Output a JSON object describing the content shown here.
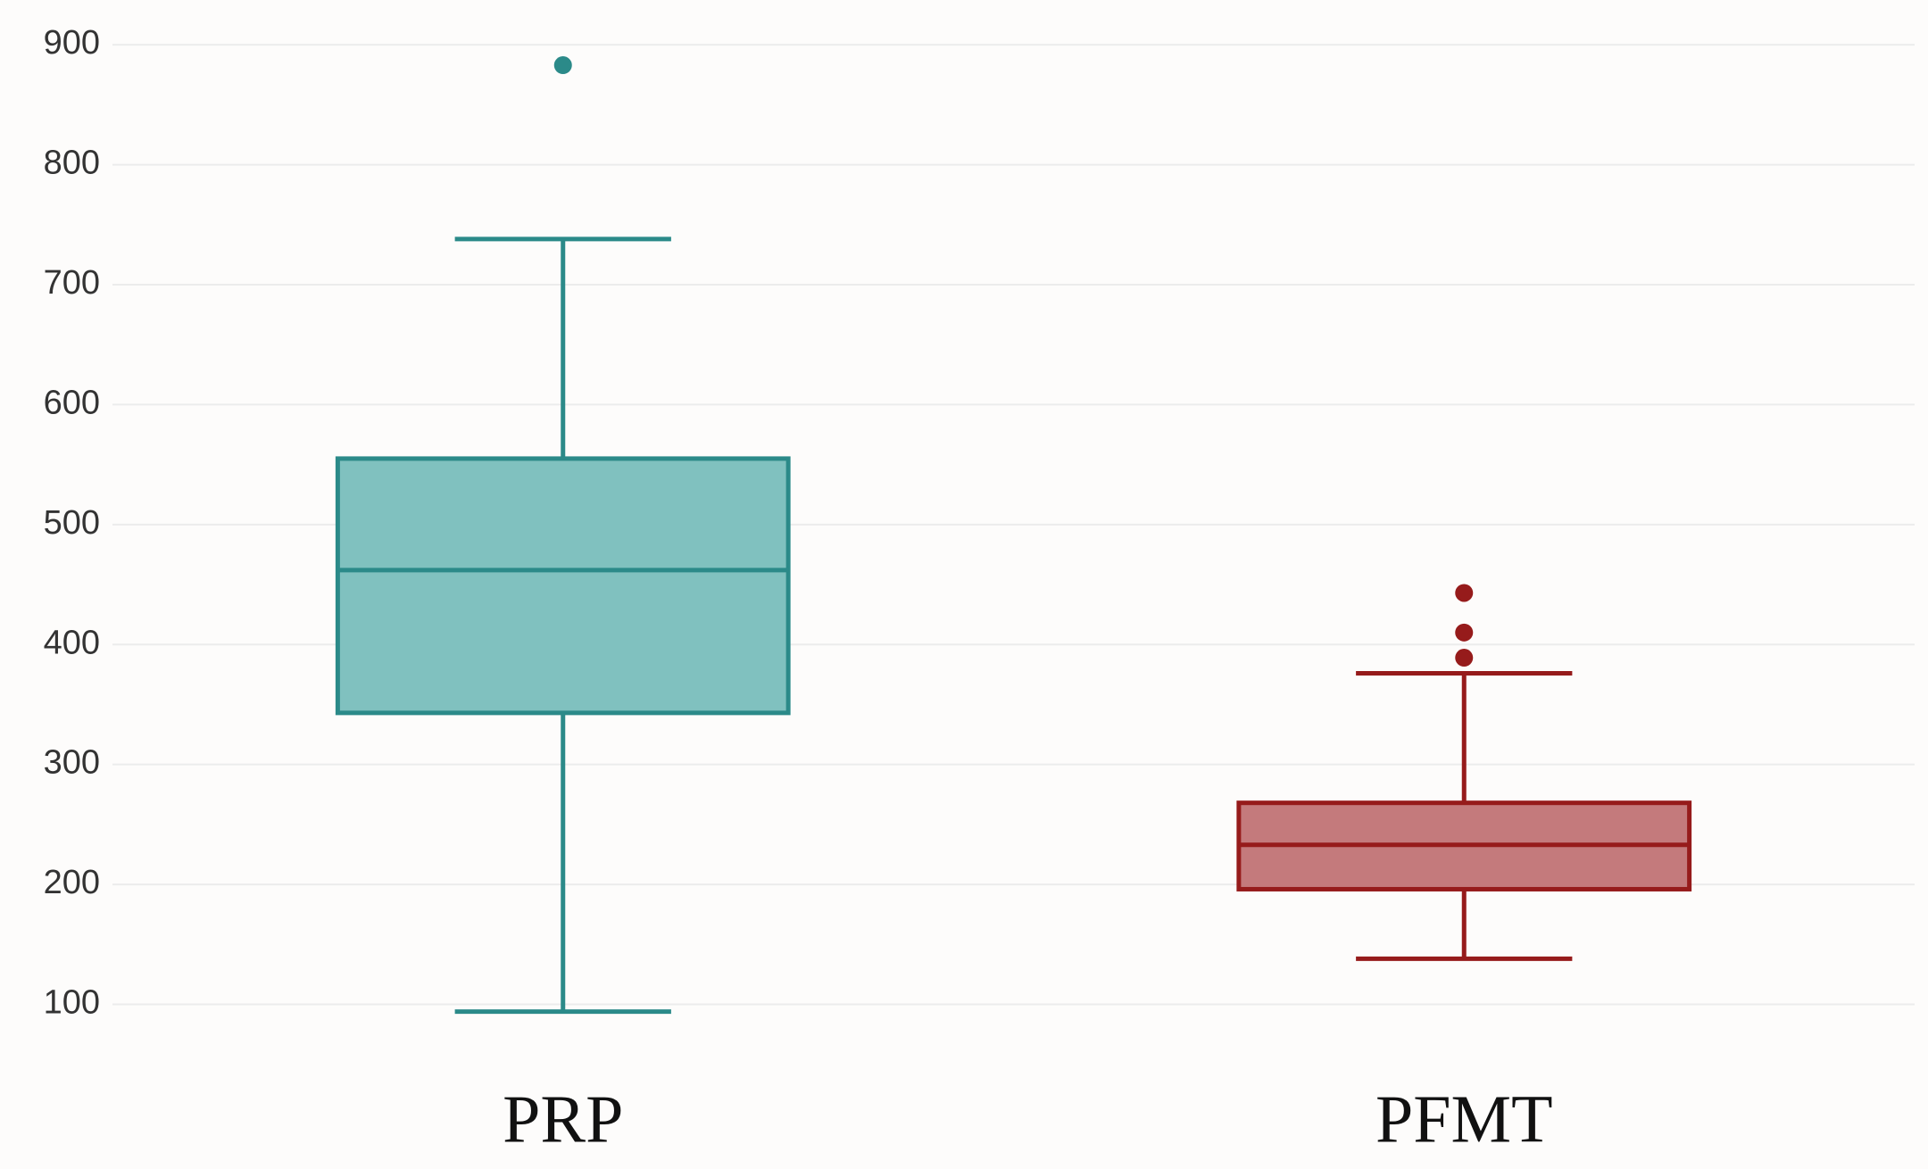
{
  "chart_data": {
    "type": "box",
    "categories": [
      "PRP",
      "PFMT"
    ],
    "stats": [
      {
        "whislo": 94,
        "q1": 343,
        "med": 462,
        "q3": 555,
        "whishi": 738,
        "fliers": [
          883
        ]
      },
      {
        "whislo": 138,
        "q1": 196,
        "med": 233,
        "q3": 268,
        "whishi": 376,
        "fliers": [
          443,
          410,
          389
        ]
      }
    ],
    "colors": [
      "#2b8a89",
      "#961b1b"
    ],
    "fill_colors": [
      "#80c1bf",
      "#c47a7c"
    ],
    "ylim": [
      55,
      915
    ],
    "yticks": [
      100,
      200,
      300,
      400,
      500,
      600,
      700,
      800,
      900
    ],
    "grid": true
  }
}
